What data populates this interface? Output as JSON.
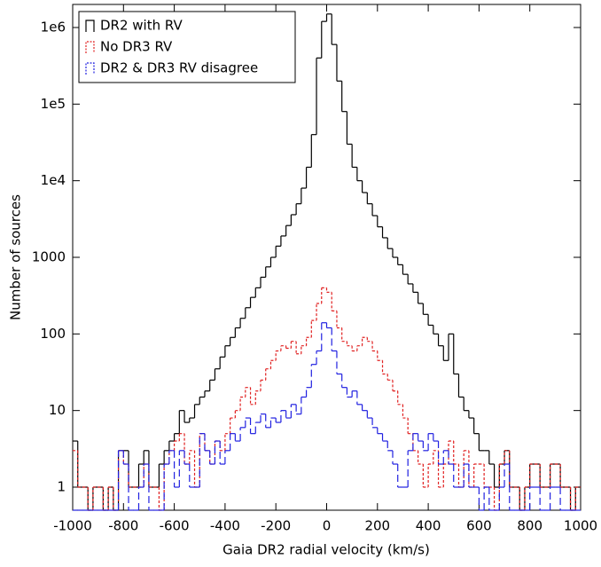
{
  "chart_data": {
    "type": "step-histogram",
    "xlabel": "Gaia DR2 radial velocity (km/s)",
    "ylabel": "Number of sources",
    "log_y": true,
    "legend": "upper left",
    "xlim": [
      -1000,
      1000
    ],
    "ylim": [
      0.5,
      2000000
    ],
    "xticks": [
      -1000,
      -800,
      -600,
      -400,
      -200,
      0,
      200,
      400,
      600,
      800,
      1000
    ],
    "yticks": [
      1,
      10,
      100,
      1000,
      {
        "value": 10000,
        "label": "1e4"
      },
      {
        "value": 100000,
        "label": "1e5"
      },
      {
        "value": 1000000,
        "label": "1e6"
      }
    ],
    "bins": [
      -1000,
      -980,
      -960,
      -940,
      -920,
      -900,
      -880,
      -860,
      -840,
      -820,
      -800,
      -780,
      -760,
      -740,
      -720,
      -700,
      -680,
      -660,
      -640,
      -620,
      -600,
      -580,
      -560,
      -540,
      -520,
      -500,
      -480,
      -460,
      -440,
      -420,
      -400,
      -380,
      -360,
      -340,
      -320,
      -300,
      -280,
      -260,
      -240,
      -220,
      -200,
      -180,
      -160,
      -140,
      -120,
      -100,
      -80,
      -60,
      -40,
      -20,
      0,
      20,
      40,
      60,
      80,
      100,
      120,
      140,
      160,
      180,
      200,
      220,
      240,
      260,
      280,
      300,
      320,
      340,
      360,
      380,
      400,
      420,
      440,
      460,
      480,
      500,
      520,
      540,
      560,
      580,
      600,
      620,
      640,
      660,
      680,
      700,
      720,
      740,
      760,
      780,
      800,
      820,
      840,
      860,
      880,
      900,
      920,
      940,
      960,
      980,
      1000
    ],
    "series": [
      {
        "name": "DR2 with RV",
        "color": "#000000",
        "dash": "none",
        "values": [
          4,
          1,
          1,
          0,
          1,
          1,
          0,
          1,
          0,
          3,
          3,
          1,
          1,
          2,
          3,
          1,
          1,
          2,
          3,
          4,
          5,
          10,
          7,
          8,
          12,
          15,
          18,
          25,
          35,
          50,
          70,
          90,
          120,
          160,
          220,
          300,
          400,
          550,
          750,
          1000,
          1400,
          1900,
          2600,
          3600,
          5000,
          8000,
          15000,
          40000,
          400000,
          1200000,
          1500000,
          600000,
          200000,
          80000,
          30000,
          15000,
          10000,
          7000,
          5000,
          3500,
          2500,
          1800,
          1300,
          1000,
          800,
          600,
          450,
          350,
          250,
          180,
          130,
          100,
          70,
          45,
          100,
          30,
          15,
          10,
          8,
          5,
          3,
          3,
          2,
          1,
          2,
          3,
          1,
          1,
          0,
          1,
          2,
          2,
          1,
          1,
          2,
          2,
          1,
          1,
          0,
          1
        ]
      },
      {
        "name": "No DR3 RV",
        "color": "#e02020",
        "dash": "3,2",
        "values": [
          3,
          1,
          1,
          0,
          1,
          1,
          0,
          1,
          0,
          3,
          2,
          1,
          1,
          1,
          2,
          1,
          1,
          0,
          2,
          3,
          4,
          5,
          2,
          3,
          1,
          5,
          3,
          2,
          4,
          3,
          5,
          8,
          10,
          15,
          20,
          12,
          18,
          25,
          35,
          45,
          60,
          70,
          65,
          80,
          55,
          70,
          90,
          150,
          250,
          400,
          350,
          200,
          120,
          80,
          70,
          60,
          70,
          90,
          80,
          60,
          45,
          30,
          25,
          18,
          12,
          8,
          5,
          3,
          2,
          1,
          2,
          3,
          1,
          2,
          4,
          2,
          1,
          3,
          1,
          2,
          2,
          1,
          1,
          0,
          2,
          3,
          1,
          1,
          0,
          1,
          2,
          2,
          1,
          1,
          2,
          2,
          1,
          1,
          0,
          1
        ]
      },
      {
        "name": "DR2 & DR3 RV disagree",
        "color": "#2020e0",
        "dash": "8,4",
        "values": [
          0,
          0,
          0,
          0,
          0,
          0,
          0,
          0,
          0,
          3,
          2,
          0,
          0,
          1,
          2,
          0,
          0,
          0,
          2,
          3,
          1,
          3,
          2,
          1,
          1,
          5,
          3,
          2,
          4,
          2,
          3,
          5,
          4,
          6,
          8,
          5,
          7,
          9,
          6,
          8,
          7,
          10,
          8,
          12,
          9,
          15,
          20,
          40,
          60,
          140,
          120,
          60,
          30,
          20,
          15,
          18,
          12,
          10,
          8,
          6,
          5,
          4,
          3,
          2,
          1,
          1,
          3,
          5,
          4,
          3,
          5,
          4,
          2,
          3,
          2,
          1,
          1,
          2,
          1,
          1,
          0,
          1,
          0,
          0,
          1,
          2,
          0,
          0,
          0,
          0,
          1,
          1,
          0,
          0,
          1,
          1,
          0,
          0,
          0,
          0
        ]
      }
    ]
  }
}
